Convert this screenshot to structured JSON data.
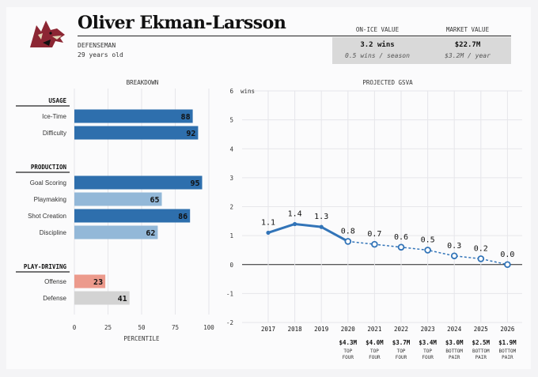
{
  "player": {
    "name": "Oliver Ekman-Larsson",
    "position": "DEFENSEMAN",
    "age": "29 years old",
    "team_logo": "coyote-logo"
  },
  "on_ice_value": {
    "label": "ON-ICE VALUE",
    "main": "3.2 wins",
    "sub": "0.5 wins / season"
  },
  "market_value": {
    "label": "MARKET VALUE",
    "main": "$22.7M",
    "sub": "$3.2M / year"
  },
  "breakdown_title": "BREAKDOWN",
  "projection_title": "PROJECTED GSVA",
  "colors": {
    "dark_blue": "#2e6fad",
    "light_blue": "#93b8d8",
    "salmon": "#ec9a8c",
    "grey": "#d3d3d3",
    "line": "#3274b8"
  },
  "chart_data": [
    {
      "type": "bar",
      "title": "BREAKDOWN",
      "xlabel": "PERCENTILE",
      "xlim": [
        0,
        100
      ],
      "xticks": [
        "0",
        "25",
        "50",
        "75",
        "100"
      ],
      "groups": [
        {
          "name": "USAGE",
          "items": [
            {
              "label": "Ice-Time",
              "value": 88,
              "shade": "dark_blue"
            },
            {
              "label": "Difficulty",
              "value": 92,
              "shade": "dark_blue"
            }
          ]
        },
        {
          "name": "PRODUCTION",
          "items": [
            {
              "label": "Goal Scoring",
              "value": 95,
              "shade": "dark_blue"
            },
            {
              "label": "Playmaking",
              "value": 65,
              "shade": "light_blue"
            },
            {
              "label": "Shot Creation",
              "value": 86,
              "shade": "dark_blue"
            },
            {
              "label": "Discipline",
              "value": 62,
              "shade": "light_blue"
            }
          ]
        },
        {
          "name": "PLAY-DRIVING",
          "items": [
            {
              "label": "Offense",
              "value": 23,
              "shade": "salmon"
            },
            {
              "label": "Defense",
              "value": 41,
              "shade": "grey"
            }
          ]
        }
      ]
    },
    {
      "type": "line",
      "title": "PROJECTED GSVA",
      "ylabel": "wins",
      "ylim": [
        -2,
        6
      ],
      "yticks": [
        "-2",
        "-1",
        "0",
        "1",
        "2",
        "3",
        "4",
        "5",
        "6"
      ],
      "x": [
        "2017",
        "2018",
        "2019",
        "2020",
        "2021",
        "2022",
        "2023",
        "2024",
        "2025",
        "2026"
      ],
      "values": [
        1.1,
        1.4,
        1.3,
        0.8,
        0.7,
        0.6,
        0.5,
        0.3,
        0.2,
        0.0
      ],
      "labels": [
        "1.1",
        "1.4",
        "1.3",
        "0.8",
        "0.7",
        "0.6",
        "0.5",
        "0.3",
        "0.2",
        "0.0"
      ],
      "projection_start_index": 3,
      "projections": [
        {
          "year": "2020",
          "salary": "$4.3M",
          "role": [
            "TOP",
            "FOUR"
          ]
        },
        {
          "year": "2021",
          "salary": "$4.0M",
          "role": [
            "TOP",
            "FOUR"
          ]
        },
        {
          "year": "2022",
          "salary": "$3.7M",
          "role": [
            "TOP",
            "FOUR"
          ]
        },
        {
          "year": "2023",
          "salary": "$3.4M",
          "role": [
            "TOP",
            "FOUR"
          ]
        },
        {
          "year": "2024",
          "salary": "$3.0M",
          "role": [
            "BOTTOM",
            "PAIR"
          ]
        },
        {
          "year": "2025",
          "salary": "$2.5M",
          "role": [
            "BOTTOM",
            "PAIR"
          ]
        },
        {
          "year": "2026",
          "salary": "$1.9M",
          "role": [
            "BOTTOM",
            "PAIR"
          ]
        }
      ]
    }
  ]
}
